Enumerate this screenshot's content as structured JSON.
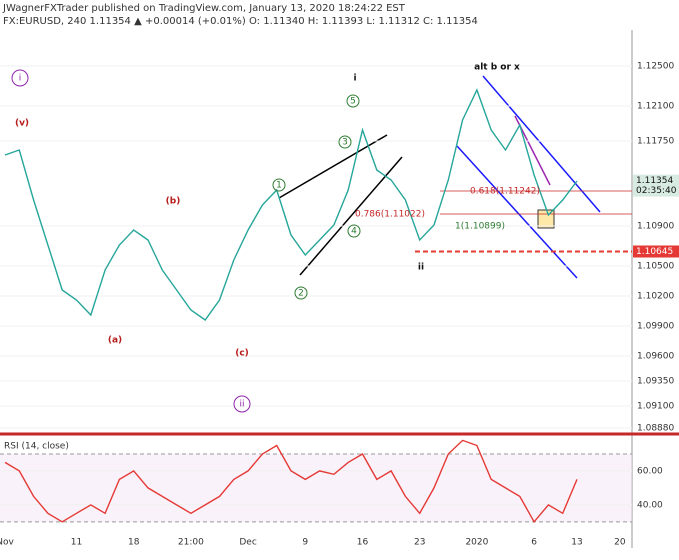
{
  "header": {
    "line1": "JWagnerFXTrader published on TradingView.com, January 13, 2020 18:24:22 EST",
    "line2": "FX:EURUSD, 240  1.11354  ▲ +0.00014 (+0.01%)  O: 1.11340  H: 1.11393  L: 1.11312  C: 1.11354"
  },
  "chart_data": [
    {
      "type": "line",
      "title": "FX:EURUSD, 240",
      "color": "#26a69a",
      "categories": [
        "Nov",
        null,
        null,
        null,
        null,
        "11",
        null,
        null,
        null,
        "18",
        null,
        null,
        null,
        "21:00",
        null,
        null,
        null,
        "Dec",
        null,
        null,
        null,
        "9",
        null,
        null,
        null,
        "16",
        null,
        null,
        null,
        "23",
        null,
        null,
        null,
        "2020",
        null,
        null,
        null,
        "6",
        null,
        null,
        "13",
        null,
        null,
        "20"
      ],
      "values": [
        1.1161,
        1.1166,
        1.1116,
        1.1071,
        1.1026,
        1.1016,
        1.1001,
        1.1046,
        1.1071,
        1.1086,
        1.1076,
        1.1046,
        1.1026,
        1.1006,
        1.0996,
        1.1016,
        1.1056,
        1.1086,
        1.1111,
        1.1126,
        1.1081,
        1.1061,
        1.1076,
        1.1091,
        1.1126,
        1.1186,
        1.1146,
        1.1136,
        1.1116,
        1.1076,
        1.1091,
        1.1136,
        1.1196,
        1.1226,
        1.1186,
        1.1166,
        1.1191,
        1.1141,
        1.1101,
        1.1116,
        1.1135,
        null,
        null,
        null
      ],
      "ylim": [
        1.0884,
        1.1286
      ],
      "yticks": [
        {
          "value": 1.125,
          "label": "1.12500"
        },
        {
          "value": 1.121,
          "label": "1.12100"
        },
        {
          "value": 1.1175,
          "label": "1.11750"
        },
        {
          "value": 1.109,
          "label": "1.10900"
        },
        {
          "value": 1.105,
          "label": "1.10500"
        },
        {
          "value": 1.102,
          "label": "1.10200"
        },
        {
          "value": 1.099,
          "label": "1.09900"
        },
        {
          "value": 1.096,
          "label": "1.09600"
        },
        {
          "value": 1.0935,
          "label": "1.09350"
        },
        {
          "value": 1.091,
          "label": "1.09100"
        },
        {
          "value": 1.0888,
          "label": "1.08880"
        }
      ],
      "last": {
        "value": 1.11354,
        "label": "1.11354",
        "countdown": "02:35:40"
      },
      "level": {
        "value": 1.10645,
        "label": "1.10645",
        "color": "#e53935"
      },
      "annotations": [
        {
          "text": "(v)",
          "color": "#b71c1c"
        },
        {
          "text": "(a)",
          "color": "#b71c1c"
        },
        {
          "text": "(b)",
          "color": "#b71c1c"
        },
        {
          "text": "(c)",
          "color": "#b71c1c"
        },
        {
          "text": "i",
          "color": "#8e24aa"
        },
        {
          "text": "ii",
          "color": "#8e24aa"
        },
        {
          "text": "1",
          "color": "#2e7d32"
        },
        {
          "text": "2",
          "color": "#2e7d32"
        },
        {
          "text": "3",
          "color": "#2e7d32"
        },
        {
          "text": "4",
          "color": "#2e7d32"
        },
        {
          "text": "5",
          "color": "#2e7d32"
        },
        {
          "text": "i",
          "color": "#111"
        },
        {
          "text": "ii",
          "color": "#111"
        },
        {
          "text": "alt b or x",
          "color": "#111"
        },
        {
          "text": "0.618(1.11242)",
          "color": "#c62828"
        },
        {
          "text": "0.786(1.11022)",
          "color": "#c62828"
        },
        {
          "text": "1(1.10899)",
          "color": "#2e7d32"
        }
      ]
    },
    {
      "type": "line",
      "title": "RSI (14, close)",
      "color": "#e53935",
      "values": [
        65,
        60,
        45,
        35,
        30,
        35,
        40,
        35,
        55,
        60,
        50,
        45,
        40,
        35,
        40,
        45,
        55,
        60,
        70,
        75,
        60,
        55,
        60,
        58,
        65,
        70,
        55,
        60,
        45,
        35,
        50,
        70,
        78,
        75,
        55,
        50,
        45,
        30,
        40,
        35,
        55,
        null,
        null,
        null
      ],
      "ylim": [
        24,
        80
      ],
      "yticks": [
        {
          "value": 40,
          "label": "40.00"
        },
        {
          "value": 60,
          "label": "60.00"
        }
      ],
      "bands": [
        30,
        70
      ]
    }
  ]
}
